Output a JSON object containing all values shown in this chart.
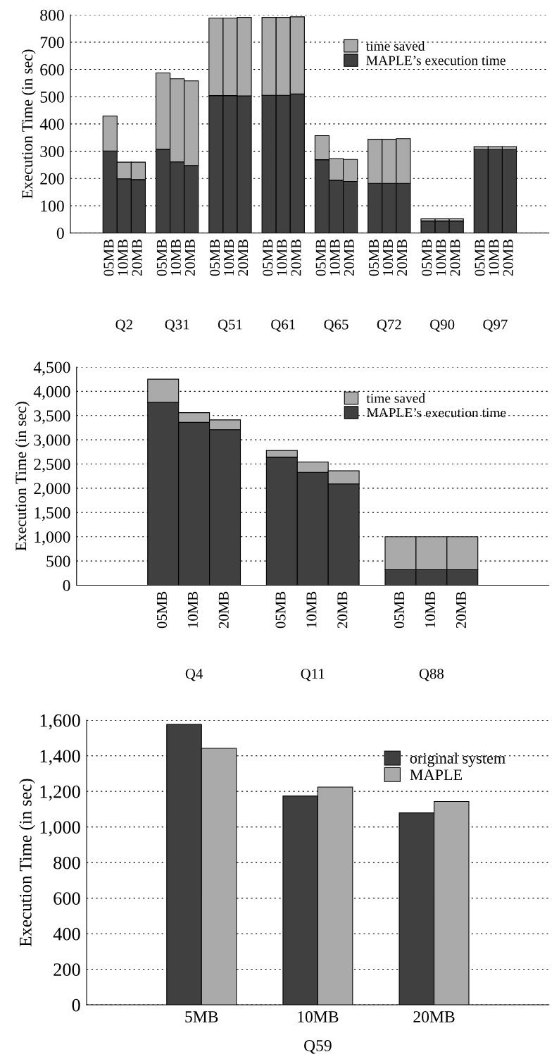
{
  "chart_data": [
    {
      "type": "bar",
      "stacked": true,
      "ylabel": "Execution Time (in sec)",
      "categories": [
        "05MB",
        "10MB",
        "20MB",
        "05MB",
        "10MB",
        "20MB",
        "05MB",
        "10MB",
        "20MB",
        "05MB",
        "10MB",
        "20MB",
        "05MB",
        "10MB",
        "20MB",
        "05MB",
        "10MB",
        "20MB",
        "05MB",
        "10MB",
        "20MB",
        "05MB",
        "10MB",
        "20MB"
      ],
      "series": [
        {
          "name": "MAPLE’s execution time",
          "color": "#404040",
          "values": [
            301,
            199,
            196,
            307,
            261,
            248,
            504,
            504,
            503,
            505,
            505,
            510,
            269,
            194,
            189,
            182,
            182,
            182,
            44,
            44,
            44,
            306,
            306,
            306
          ]
        },
        {
          "name": "time saved",
          "color": "#aaaaaa",
          "values": [
            128,
            61,
            64,
            280,
            305,
            310,
            284,
            284,
            288,
            286,
            286,
            283,
            88,
            79,
            81,
            162,
            162,
            164,
            8,
            8,
            8,
            11,
            11,
            11
          ]
        }
      ],
      "annotations": [
        "Q2",
        "Q31",
        "Q51",
        "Q61",
        "Q65",
        "Q72",
        "Q90",
        "Q97"
      ],
      "ylim": [
        0,
        800
      ],
      "yticks": [
        0,
        100,
        200,
        300,
        400,
        500,
        600,
        700,
        800
      ],
      "grid": "y",
      "legend": "top right"
    },
    {
      "type": "bar",
      "stacked": true,
      "ylabel": "Execution Time (in sec)",
      "categories": [
        "05MB",
        "10MB",
        "20MB",
        "05MB",
        "10MB",
        "20MB",
        "05MB",
        "10MB",
        "20MB"
      ],
      "series": [
        {
          "name": "MAPLE’s execution time",
          "color": "#404040",
          "values": [
            3770,
            3360,
            3210,
            2640,
            2330,
            2090,
            320,
            320,
            320
          ]
        },
        {
          "name": "time saved",
          "color": "#aaaaaa",
          "values": [
            480,
            200,
            200,
            140,
            210,
            270,
            680,
            680,
            680
          ]
        }
      ],
      "annotations": [
        "Q4",
        "Q11",
        "Q88"
      ],
      "ylim": [
        0,
        4500
      ],
      "yticks": [
        0,
        500,
        {
          "value": 1000,
          "label": "1,000"
        },
        {
          "value": 1500,
          "label": "1,500"
        },
        {
          "value": 2000,
          "label": "2,000"
        },
        {
          "value": 2500,
          "label": "2,500"
        },
        {
          "value": 3000,
          "label": "3,000"
        },
        {
          "value": 3500,
          "label": "3,500"
        },
        {
          "value": 4000,
          "label": "4,000"
        },
        {
          "value": 4500,
          "label": "4,500"
        }
      ],
      "grid": "y",
      "legend": "top right"
    },
    {
      "type": "bar",
      "ylabel": "Execution Time (in sec)",
      "xlabel": "Q59",
      "categories": [
        "5MB",
        "10MB",
        "20MB"
      ],
      "series": [
        {
          "name": "original system",
          "color": "#404040",
          "values": [
            1576,
            1174,
            1079
          ]
        },
        {
          "name": "MAPLE",
          "color": "#aaaaaa",
          "values": [
            1442,
            1224,
            1143
          ]
        }
      ],
      "ylim": [
        0,
        1600
      ],
      "yticks": [
        0,
        200,
        400,
        600,
        800,
        {
          "value": 1000,
          "label": "1,000"
        },
        {
          "value": 1200,
          "label": "1,200"
        },
        {
          "value": 1400,
          "label": "1,400"
        },
        {
          "value": 1600,
          "label": "1,600"
        }
      ],
      "grid": "y",
      "legend": "top right"
    }
  ]
}
